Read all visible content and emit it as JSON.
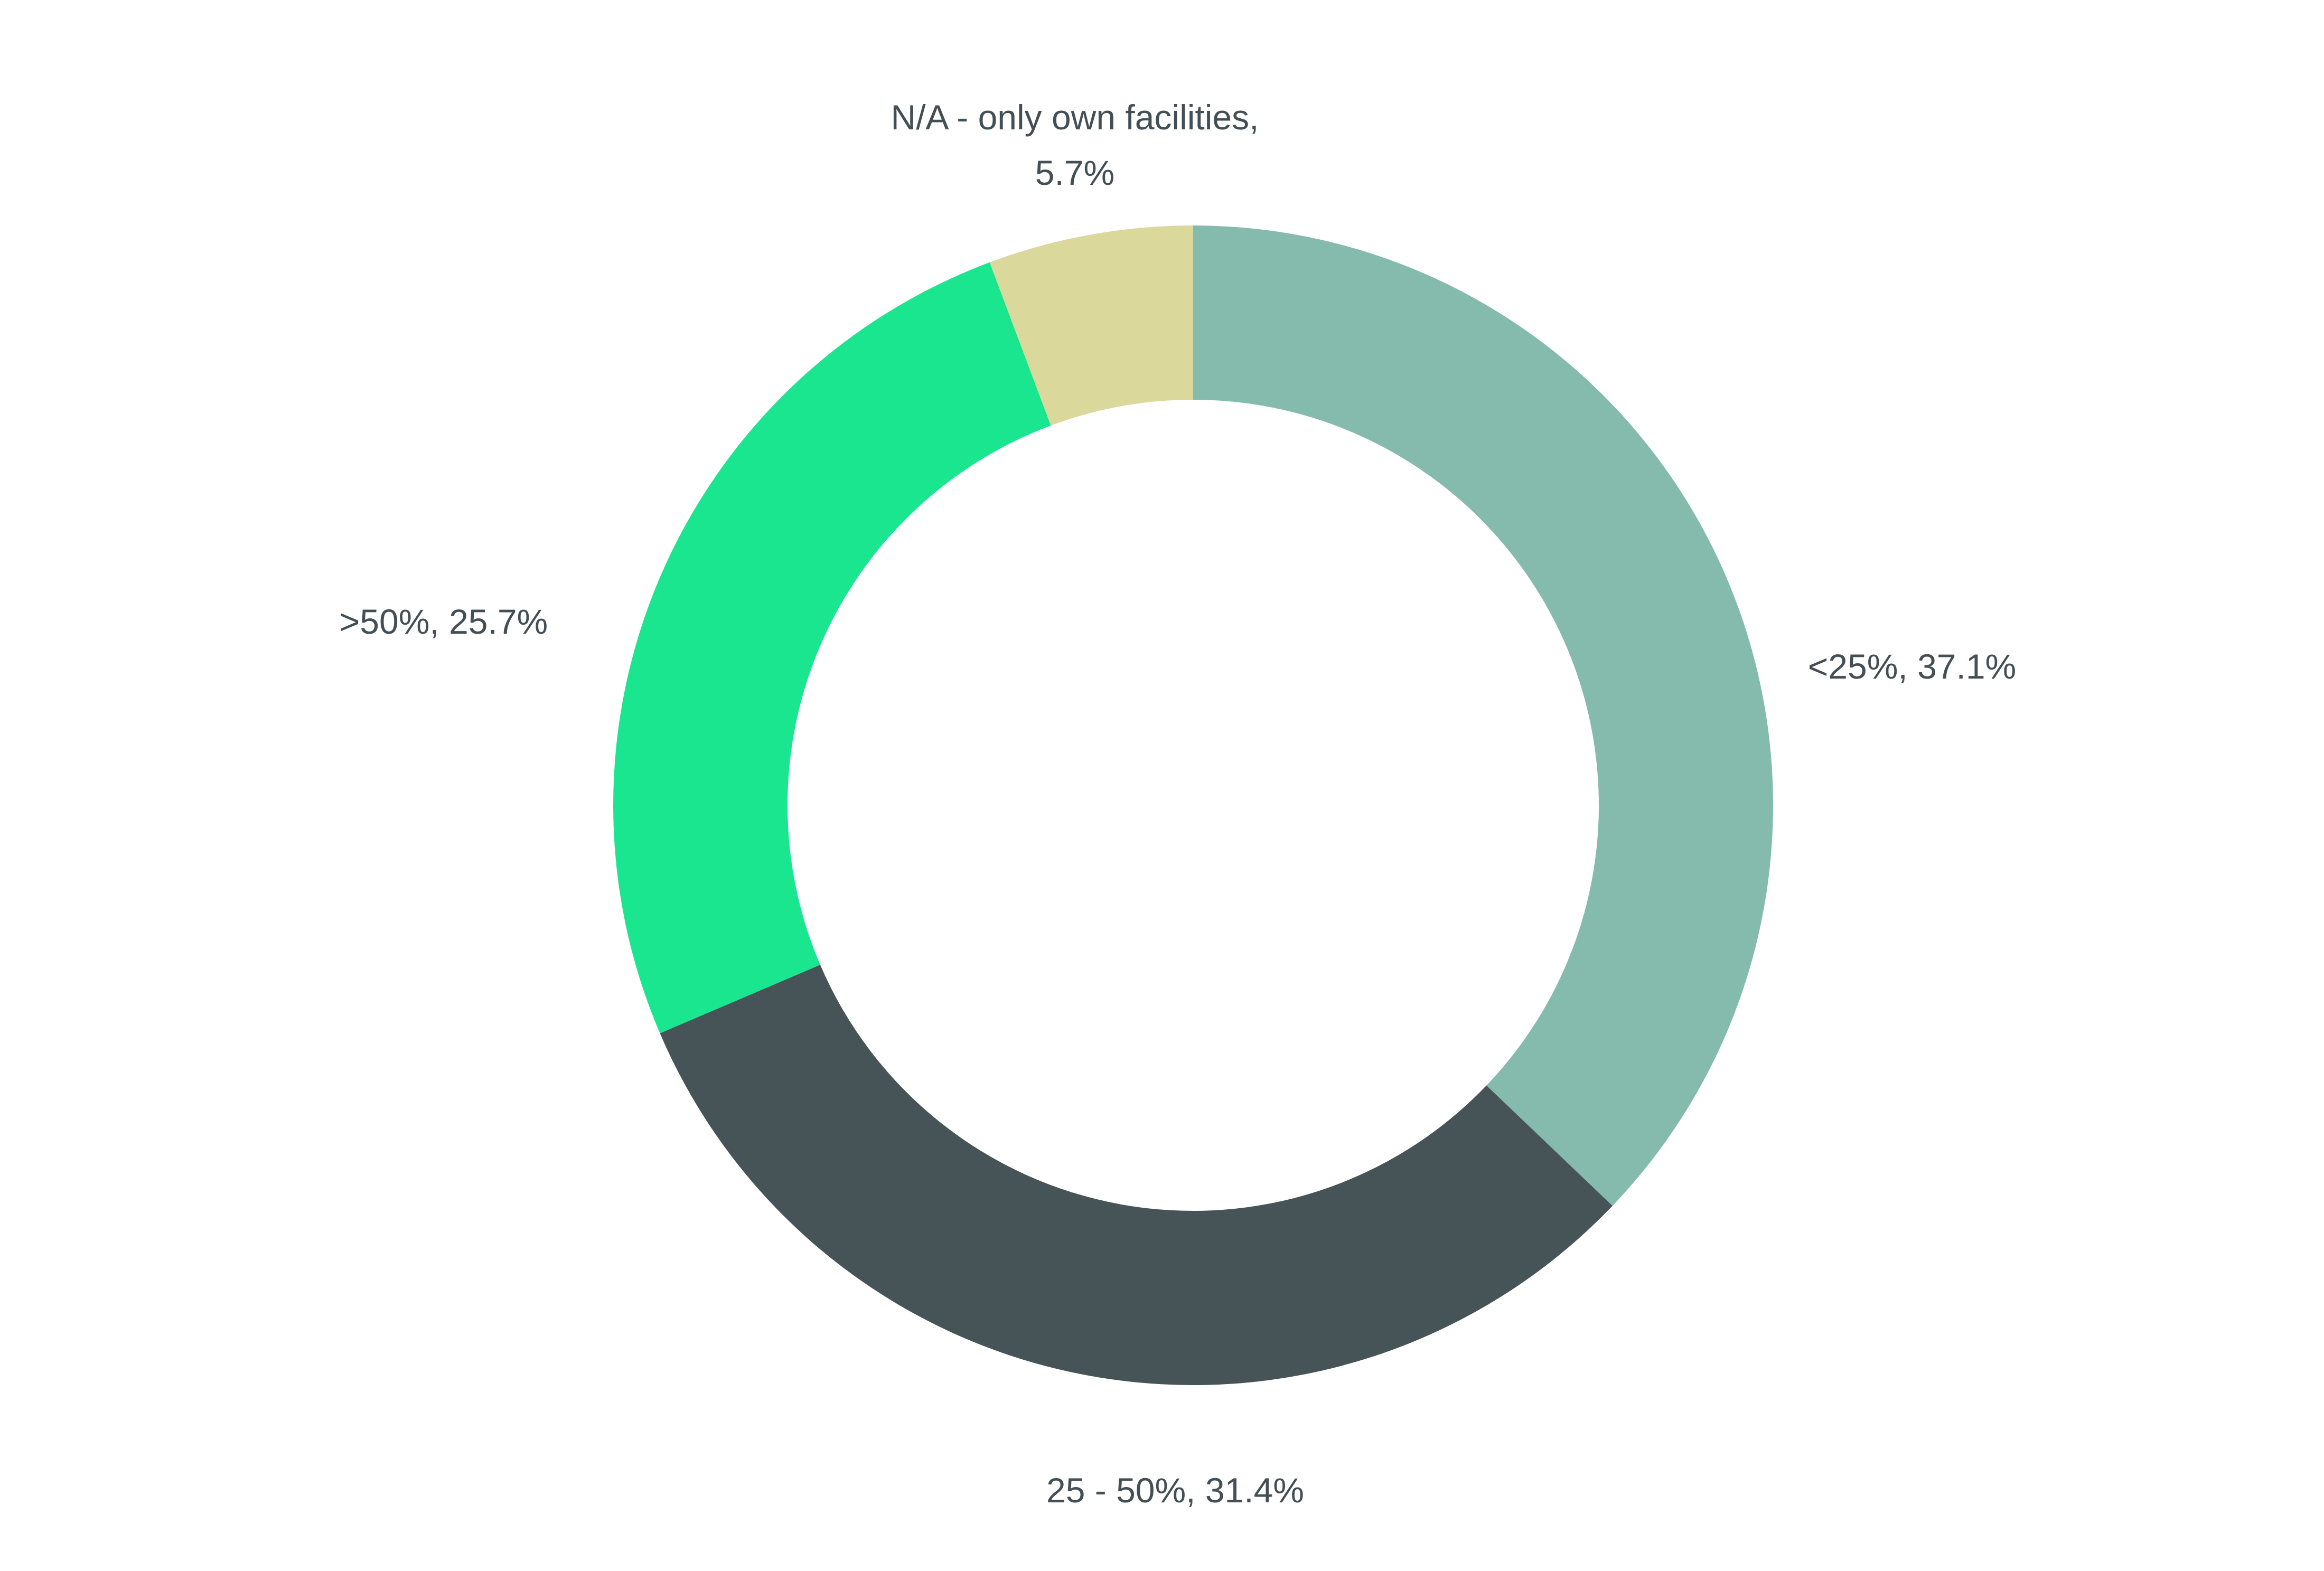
{
  "chart_data": {
    "type": "pie",
    "donut": true,
    "title": "",
    "start_angle_deg": 0,
    "direction": "clockwise",
    "label_color": "#434f55",
    "slices": [
      {
        "category": "<25%",
        "value": 37.1,
        "label": "<25%, 37.1%",
        "color": "#84bbad"
      },
      {
        "category": "25 - 50%",
        "value": 31.4,
        "label": "25 - 50%, 31.4%",
        "color": "#465457"
      },
      {
        "category": ">50%",
        "value": 25.7,
        "label": ">50%, 25.7%",
        "color": "#19e68f"
      },
      {
        "category": "N/A - only own facilities",
        "value": 5.7,
        "label_lines": [
          "N/A - only own facilities,",
          "5.7%"
        ],
        "color": "#dbd89c"
      }
    ]
  }
}
